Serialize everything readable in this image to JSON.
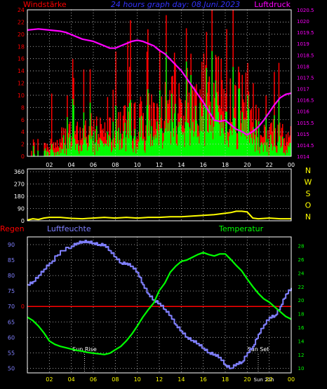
{
  "colors": {
    "background": "#000000",
    "frame": "#ffffff",
    "grid": "#c8c8c8",
    "wind_label": "#ff0000",
    "pressure": "#ff00ff",
    "title": "#3333ff",
    "gust_bars": "#ff0000",
    "mean_bars": "#00ff00",
    "direction": "#ffff00",
    "compass": "#ffff00",
    "humidity": "#8080ff",
    "temperature": "#00ff00",
    "rain": "#ff0000",
    "time_ticks": "#ffff00"
  },
  "chart_data": [
    {
      "type": "bar",
      "title": "24 hours graph day: 08.Juni.2023",
      "left_axis_label": "Windstärke",
      "right_axis_label": "Luftdruck",
      "x_ticks": [
        "02",
        "04",
        "06",
        "08",
        "10",
        "12",
        "14",
        "16",
        "18",
        "20",
        "22",
        "00"
      ],
      "left_ticks": [
        "0",
        "2",
        "4",
        "6",
        "8",
        "10",
        "12",
        "14",
        "16",
        "18",
        "20",
        "22",
        "24"
      ],
      "right_ticks": [
        "1014",
        "1014.5",
        "1015",
        "1015.5",
        "1016",
        "1016.5",
        "1017",
        "1017.5",
        "1018",
        "1018.5",
        "1019",
        "1019.5",
        "1020",
        "1020.5"
      ],
      "ylim_left": [
        0,
        24
      ],
      "ylim_right": [
        1014,
        1020.5
      ],
      "xlim_hours": [
        0,
        24
      ],
      "grid": true,
      "series": [
        {
          "name": "Luftdruck",
          "kind": "line",
          "axis": "right",
          "x": [
            0,
            1,
            2,
            3,
            3.5,
            4,
            5,
            6,
            6.5,
            7,
            7.5,
            8,
            8.5,
            9,
            9.5,
            10,
            10.5,
            11,
            11.5,
            12,
            12.5,
            13,
            13.5,
            14,
            14.5,
            15,
            15.5,
            16,
            16.5,
            17,
            17.5,
            18,
            18.5,
            19,
            19.5,
            20,
            20.5,
            21,
            21.5,
            22,
            22.5,
            23,
            23.5,
            24
          ],
          "values": [
            1019.6,
            1019.65,
            1019.6,
            1019.55,
            1019.5,
            1019.4,
            1019.2,
            1019.1,
            1019.0,
            1018.9,
            1018.8,
            1018.8,
            1018.9,
            1019.0,
            1019.1,
            1019.15,
            1019.1,
            1019.0,
            1018.9,
            1018.7,
            1018.55,
            1018.3,
            1018.05,
            1017.8,
            1017.45,
            1017.1,
            1016.75,
            1016.4,
            1016.0,
            1015.6,
            1015.55,
            1015.6,
            1015.4,
            1015.2,
            1015.1,
            1014.95,
            1015.1,
            1015.3,
            1015.6,
            1015.95,
            1016.3,
            1016.6,
            1016.75,
            1016.8
          ]
        },
        {
          "name": "gusts",
          "kind": "bars",
          "axis": "left",
          "note_seed": 7
        },
        {
          "name": "mean",
          "kind": "bars",
          "axis": "left",
          "note_seed": 13
        }
      ]
    },
    {
      "type": "line",
      "compass_labels": [
        "N",
        "W",
        "S",
        "O",
        "N"
      ],
      "y_ticks": [
        "0",
        "90",
        "180",
        "270",
        "360"
      ],
      "ylim": [
        0,
        360
      ],
      "grid": true,
      "series": [
        {
          "name": "Windrichtung",
          "x": [
            0,
            0.5,
            1,
            1.5,
            2,
            3,
            4,
            5,
            6,
            7,
            8,
            9,
            10,
            11,
            12,
            13,
            14,
            15,
            16,
            17,
            18,
            18.5,
            19,
            19.5,
            20,
            20.5,
            21,
            22,
            23,
            24
          ],
          "values": [
            5,
            15,
            10,
            20,
            25,
            25,
            18,
            15,
            20,
            25,
            20,
            25,
            20,
            25,
            25,
            30,
            30,
            35,
            40,
            45,
            55,
            60,
            70,
            70,
            65,
            20,
            15,
            20,
            15,
            15
          ]
        }
      ]
    },
    {
      "type": "line",
      "left_axis_label": "Regen",
      "humidity_label": "Luftfeuchte",
      "temperature_label": "Temperatur",
      "annotations": [
        "Sun Rise",
        "Sun Set",
        "Sun 22h"
      ],
      "x_ticks": [
        "02",
        "04",
        "06",
        "08",
        "10",
        "12",
        "14",
        "16",
        "18",
        "20",
        "22",
        "00"
      ],
      "left_ticks": [
        "50",
        "55",
        "60",
        "65",
        "70",
        "75",
        "80",
        "85",
        "90"
      ],
      "right_ticks": [
        "10",
        "12",
        "14",
        "16",
        "18",
        "20",
        "22",
        "24",
        "26",
        "28"
      ],
      "ylim_left": [
        48.5,
        92.5
      ],
      "ylim_right": [
        9.3,
        29.3
      ],
      "grid": true,
      "rain_value": 0,
      "sunrise_hour": 5.2,
      "sunset_hour": 21.0,
      "series": [
        {
          "name": "Luftfeuchte",
          "axis": "left",
          "x": [
            0,
            0.5,
            1,
            1.5,
            2,
            3,
            4,
            4.5,
            5,
            5.5,
            6,
            6.5,
            7,
            7.5,
            8,
            8.5,
            9,
            9.5,
            10,
            10.5,
            11,
            11.5,
            12,
            12.5,
            13,
            13.5,
            14,
            14.5,
            15,
            15.5,
            16,
            16.5,
            17,
            17.5,
            18,
            18.5,
            19,
            19.5,
            20,
            20.5,
            21,
            21.5,
            22,
            22.5,
            23,
            23.5,
            24
          ],
          "values": [
            77,
            78,
            80,
            82,
            84,
            88,
            89.5,
            90.5,
            91,
            91,
            90.5,
            90,
            90,
            88,
            86,
            84,
            84,
            83,
            81,
            77,
            74,
            72,
            71,
            69,
            67,
            64,
            62,
            60,
            59,
            58,
            56.5,
            55,
            54.5,
            53.5,
            51,
            50,
            51.5,
            52,
            55,
            57,
            61,
            64,
            66.5,
            67,
            70,
            74,
            76
          ]
        },
        {
          "name": "Temperatur",
          "axis": "right",
          "x": [
            0,
            0.5,
            1,
            1.5,
            2,
            2.5,
            3,
            3.5,
            4,
            4.5,
            5,
            5.5,
            6,
            6.5,
            7,
            7.5,
            8,
            8.5,
            9,
            9.5,
            10,
            10.5,
            11,
            11.5,
            12,
            12.5,
            13,
            13.5,
            14,
            14.5,
            15,
            15.5,
            16,
            16.5,
            17,
            17.5,
            18,
            18.5,
            19,
            19.5,
            20,
            20.5,
            21,
            21.5,
            22,
            22.5,
            23,
            23.5,
            24
          ],
          "values": [
            17.5,
            17,
            16.2,
            15.2,
            14,
            13.5,
            13.2,
            13.0,
            12.8,
            12.6,
            12.5,
            12.3,
            12.2,
            12.1,
            12.0,
            12.2,
            12.7,
            13.2,
            14,
            15,
            16.2,
            17.5,
            18.6,
            19.6,
            21.4,
            22.5,
            24.1,
            25.0,
            25.7,
            25.9,
            26.3,
            26.7,
            27.0,
            26.7,
            26.5,
            26.8,
            26.8,
            26.0,
            25.1,
            24.3,
            23.1,
            22.0,
            21.0,
            20.2,
            19.7,
            19.0,
            18.3,
            17.6,
            17.2
          ]
        }
      ]
    }
  ]
}
